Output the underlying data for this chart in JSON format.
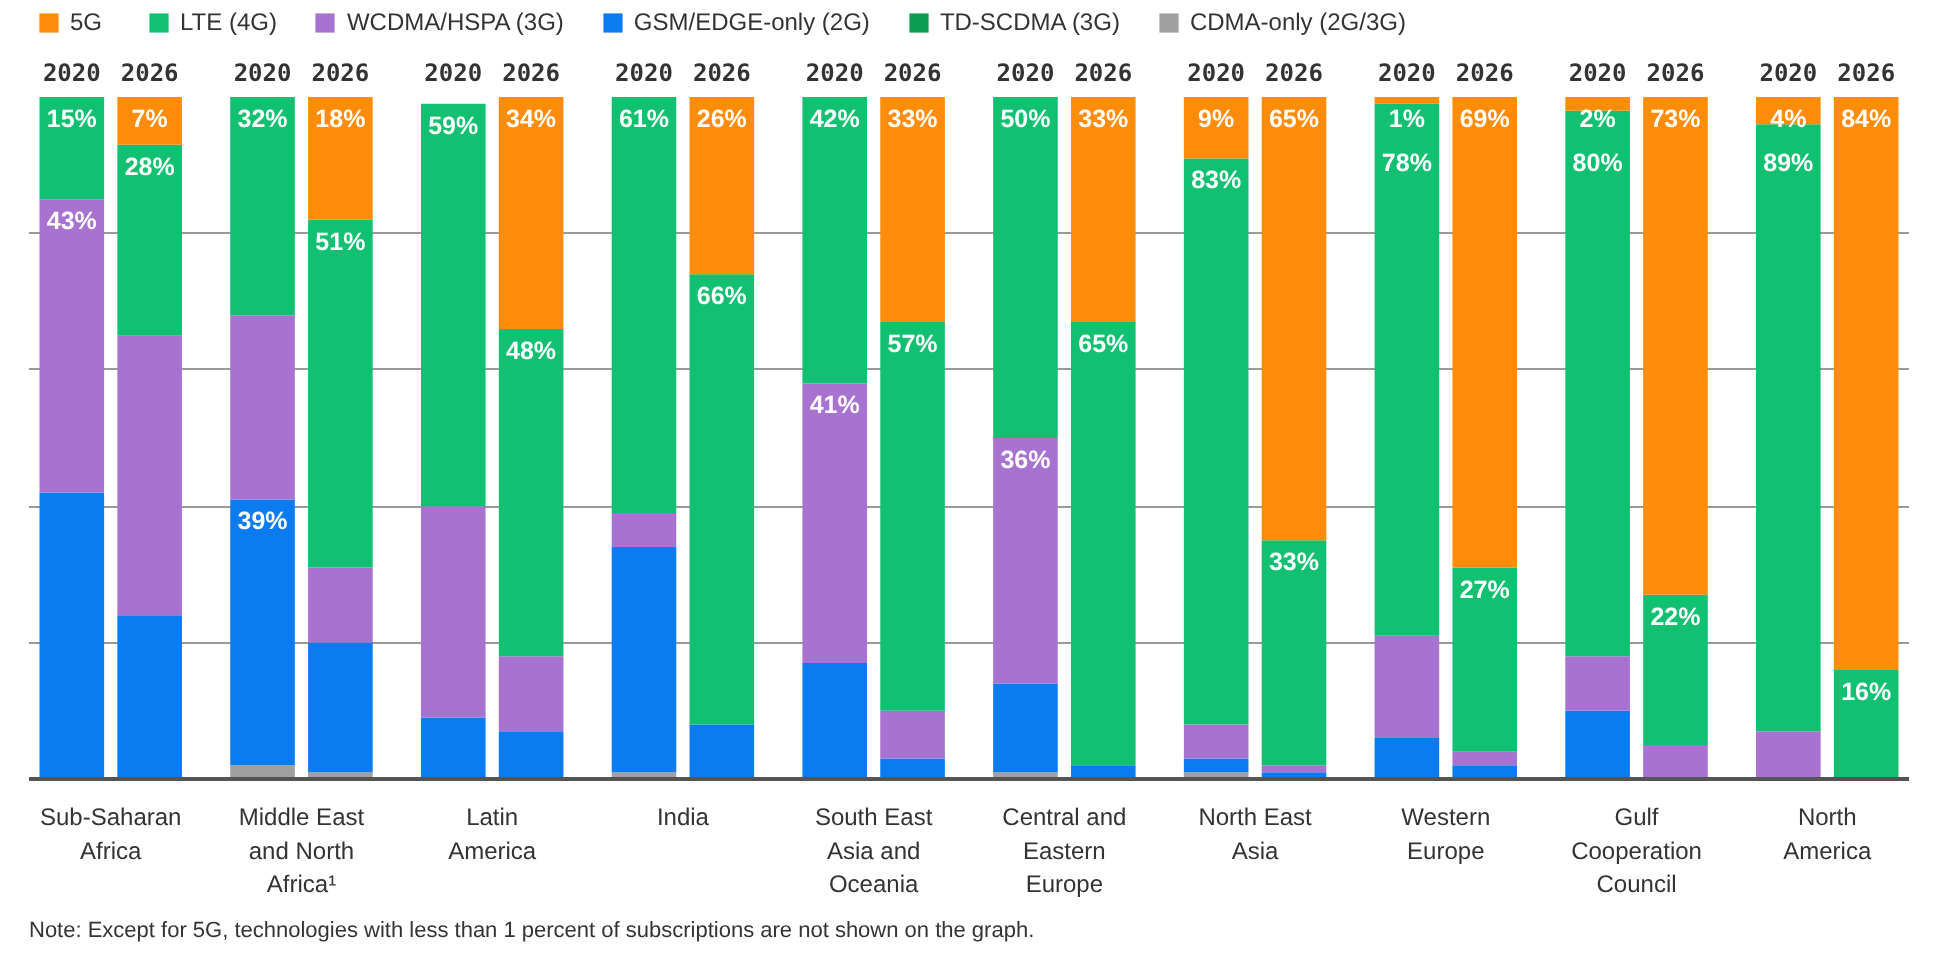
{
  "chart_data": {
    "type": "bar",
    "stacked": true,
    "categories": [
      "2020",
      "2026",
      "2020",
      "2026",
      "2020",
      "2026",
      "2020",
      "2026",
      "2020",
      "2026",
      "2020",
      "2026",
      "2020",
      "2026",
      "2020",
      "2026",
      "2020",
      "2026",
      "2020",
      "2026"
    ],
    "series": [
      {
        "name": "CDMA-only (2G/3G)",
        "color": "#a0a0a0",
        "values": [
          null,
          null,
          2,
          1,
          null,
          null,
          1,
          null,
          null,
          null,
          1,
          null,
          1,
          null,
          null,
          null,
          null,
          null,
          null,
          null
        ],
        "value_labels": [
          null,
          null,
          null,
          null,
          null,
          null,
          null,
          null,
          null,
          null,
          null,
          null,
          null,
          null,
          null,
          null,
          null,
          null,
          null,
          null
        ]
      },
      {
        "name": "TD-SCDMA (3G)",
        "color": "#0a9e50",
        "values": [
          null,
          null,
          null,
          null,
          null,
          null,
          null,
          null,
          null,
          null,
          null,
          null,
          null,
          null,
          null,
          null,
          null,
          null,
          null,
          null
        ],
        "value_labels": [
          null,
          null,
          null,
          null,
          null,
          null,
          null,
          null,
          null,
          null,
          null,
          null,
          null,
          null,
          null,
          null,
          null,
          null,
          null,
          null
        ]
      },
      {
        "name": "GSM/EDGE-only (2G)",
        "color": "#0a7cf0",
        "values": [
          42,
          24,
          39,
          19,
          9,
          7,
          33,
          8,
          17,
          3,
          13,
          2,
          2,
          1,
          6,
          2,
          10,
          null,
          null,
          null
        ],
        "value_labels": [
          null,
          null,
          "39%",
          null,
          null,
          null,
          null,
          null,
          null,
          null,
          null,
          null,
          null,
          null,
          null,
          null,
          null,
          null,
          null,
          null
        ]
      },
      {
        "name": "WCDMA/HSPA (3G)",
        "color": "#a873d0",
        "values": [
          43,
          41,
          27,
          11,
          31,
          11,
          5,
          null,
          41,
          7,
          36,
          null,
          5,
          1,
          15,
          2,
          8,
          5,
          7,
          null
        ],
        "value_labels": [
          "43%",
          null,
          null,
          null,
          null,
          null,
          null,
          null,
          "41%",
          null,
          "36%",
          null,
          null,
          null,
          null,
          null,
          null,
          null,
          null,
          null
        ]
      },
      {
        "name": "LTE (4G)",
        "color": "#12c072",
        "values": [
          15,
          28,
          32,
          51,
          59,
          48,
          61,
          66,
          42,
          57,
          50,
          65,
          83,
          33,
          78,
          27,
          80,
          22,
          89,
          16
        ],
        "value_labels": [
          "15%",
          "28%",
          "32%",
          "51%",
          "59%",
          "48%",
          "61%",
          "66%",
          "42%",
          "57%",
          "50%",
          "65%",
          "83%",
          "33%",
          "78%",
          "27%",
          "80%",
          "22%",
          "89%",
          "16%"
        ]
      },
      {
        "name": "5G",
        "color": "#ff8c0a",
        "values": [
          null,
          7,
          null,
          18,
          null,
          34,
          null,
          26,
          null,
          33,
          null,
          33,
          9,
          65,
          1,
          69,
          2,
          73,
          4,
          84
        ],
        "value_labels": [
          null,
          "7%",
          null,
          "18%",
          null,
          "34%",
          null,
          "26%",
          null,
          "33%",
          null,
          "33%",
          "9%",
          "65%",
          "1%",
          "69%",
          "2%",
          "73%",
          "4%",
          "84%"
        ]
      }
    ],
    "ylim": [
      0,
      100
    ],
    "yticks": [
      {
        "value": 0,
        "label": null
      },
      {
        "value": 20,
        "label": null
      },
      {
        "value": 40,
        "label": null
      },
      {
        "value": 60,
        "label": null
      },
      {
        "value": 80,
        "label": null
      }
    ],
    "grid": "y",
    "tick_labels": "x",
    "legend": "top left",
    "annotations": [
      "Sub-Saharan Africa",
      "Middle East and North Africa¹",
      "Latin America",
      "India",
      "South East Asia and Oceania",
      "Central and Eastern Europe",
      "North East Asia",
      "Western Europe",
      "Gulf Cooperation Council",
      "North America",
      "Note: Except for 5G, technologies with less than 1 percent of subscriptions are not shown on the graph."
    ]
  }
}
